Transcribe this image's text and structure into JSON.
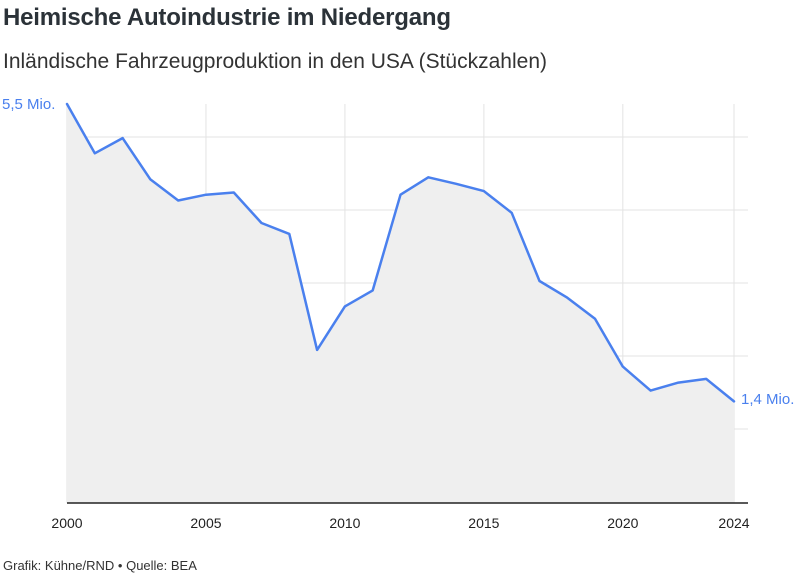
{
  "title": "Heimische Autoindustrie im Niedergang",
  "subtitle": "Inländische Fahrzeugproduktion in den USA (Stückzahlen)",
  "footer": {
    "credit": "Grafik: Kühne/RND",
    "separator": "•",
    "source": "Quelle: BEA"
  },
  "colors": {
    "line": "#4a80ee",
    "area": "#efefef",
    "grid": "#e3e3e3",
    "axis": "#222222"
  },
  "chart_data": {
    "type": "area",
    "x": [
      2000,
      2001,
      2002,
      2003,
      2004,
      2005,
      2006,
      2007,
      2008,
      2009,
      2010,
      2011,
      2012,
      2013,
      2014,
      2015,
      2016,
      2017,
      2018,
      2019,
      2020,
      2021,
      2022,
      2023,
      2024
    ],
    "series": [
      {
        "values": [
          5.5,
          4.82,
          5.03,
          4.46,
          4.17,
          4.25,
          4.28,
          3.86,
          3.71,
          2.11,
          2.71,
          2.93,
          4.25,
          4.49,
          4.4,
          4.3,
          4.0,
          3.06,
          2.83,
          2.54,
          1.88,
          1.55,
          1.66,
          1.71,
          1.4
        ]
      }
    ],
    "start_label": "5,5 Mio.",
    "end_label": "1,4 Mio.",
    "xticks": [
      "2000",
      "2005",
      "2010",
      "2015",
      "2020",
      "2024"
    ],
    "xlim": [
      2000,
      2024
    ],
    "ylim": [
      0,
      5.5
    ],
    "grid": true
  }
}
